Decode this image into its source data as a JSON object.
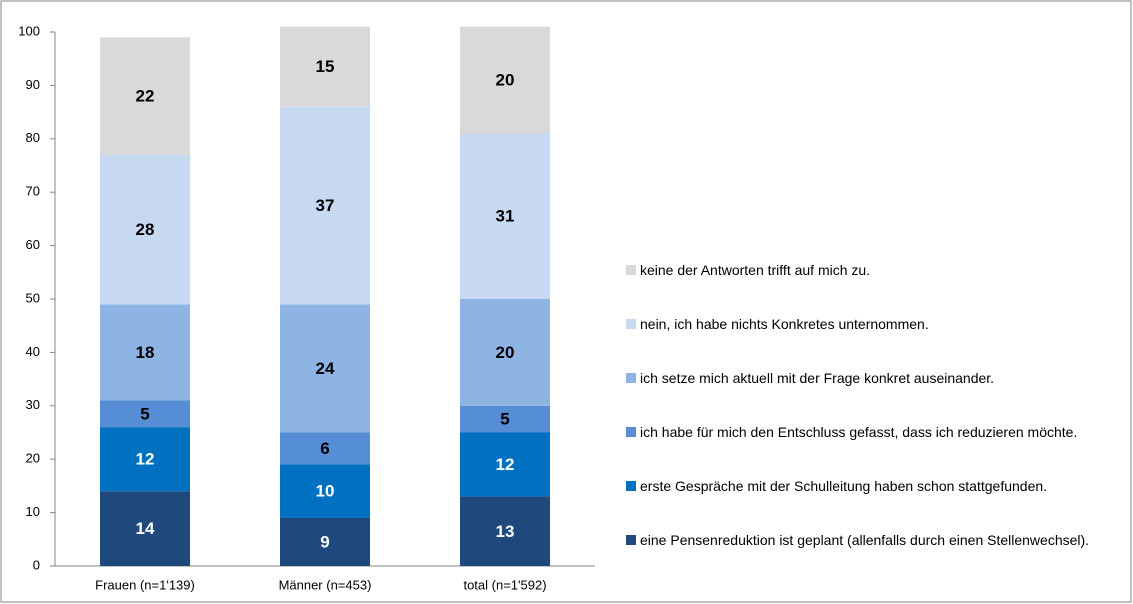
{
  "chart_data": {
    "type": "stacked_bar",
    "categories": [
      "Frauen (n=1'139)",
      "Männer (n=453)",
      "total (n=1'592)"
    ],
    "series": [
      {
        "name": "eine Pensenreduktion ist geplant (allenfalls durch einen Stellenwechsel).",
        "color": "#1f497d",
        "values": [
          14,
          9,
          13
        ]
      },
      {
        "name": "erste Gespräche mit der Schulleitung haben schon stattgefunden.",
        "color": "#0070c0",
        "values": [
          12,
          10,
          12
        ]
      },
      {
        "name": "ich habe für mich den Entschluss gefasst, dass ich reduzieren möchte.",
        "color": "#558ed5",
        "values": [
          5,
          6,
          5
        ]
      },
      {
        "name": "ich setze mich aktuell mit der Frage konkret auseinander.",
        "color": "#8eb4e3",
        "values": [
          18,
          24,
          20
        ]
      },
      {
        "name": "nein, ich habe nichts Konkretes unternommen.",
        "color": "#c6d9f1",
        "values": [
          28,
          37,
          31
        ]
      },
      {
        "name": "keine der Antworten trifft auf mich zu.",
        "color": "#d9d9d9",
        "values": [
          22,
          15,
          20
        ]
      }
    ],
    "ylim": [
      0,
      100
    ],
    "yticks": [
      0,
      10,
      20,
      30,
      40,
      50,
      60,
      70,
      80,
      90,
      100
    ],
    "legend": "right"
  }
}
